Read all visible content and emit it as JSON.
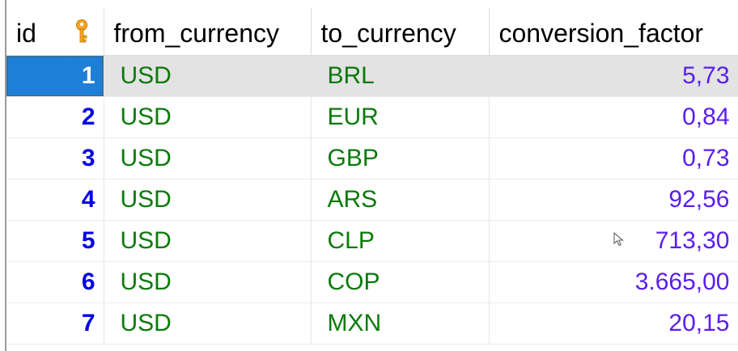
{
  "columns": {
    "id": "id",
    "from_currency": "from_currency",
    "to_currency": "to_currency",
    "conversion_factor": "conversion_factor"
  },
  "rows": [
    {
      "id": "1",
      "from_currency": "USD",
      "to_currency": "BRL",
      "conversion_factor": "5,73"
    },
    {
      "id": "2",
      "from_currency": "USD",
      "to_currency": "EUR",
      "conversion_factor": "0,84"
    },
    {
      "id": "3",
      "from_currency": "USD",
      "to_currency": "GBP",
      "conversion_factor": "0,73"
    },
    {
      "id": "4",
      "from_currency": "USD",
      "to_currency": "ARS",
      "conversion_factor": "92,56"
    },
    {
      "id": "5",
      "from_currency": "USD",
      "to_currency": "CLP",
      "conversion_factor": "713,30"
    },
    {
      "id": "6",
      "from_currency": "USD",
      "to_currency": "COP",
      "conversion_factor": "3.665,00"
    },
    {
      "id": "7",
      "from_currency": "USD",
      "to_currency": "MXN",
      "conversion_factor": "20,15"
    }
  ],
  "selected_row": 0,
  "icons": {
    "primary_key": "key-icon",
    "pointer": "mouse-cursor-icon"
  },
  "colors": {
    "id_text": "#0000e6",
    "currency_text": "#0b7a0b",
    "number_text": "#5a1ef0",
    "selection": "#1e7fd8",
    "key_icon": "#f5a623"
  }
}
